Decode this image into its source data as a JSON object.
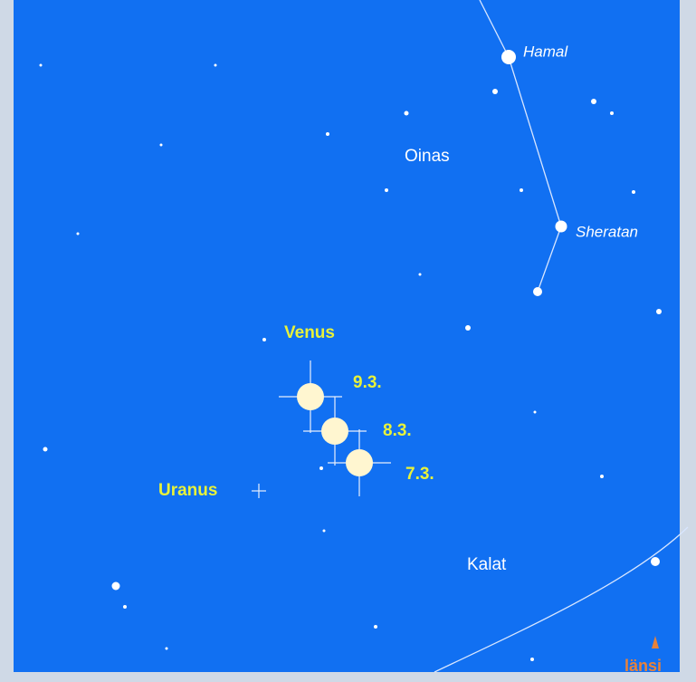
{
  "stars": [
    "Hamal",
    "Sheratan"
  ],
  "constellations": [
    "Oinas",
    "Kalat"
  ],
  "planets": [
    "Venus",
    "Uranus"
  ],
  "dates": [
    "9.3.",
    "8.3.",
    "7.3."
  ],
  "direction": "länsi"
}
